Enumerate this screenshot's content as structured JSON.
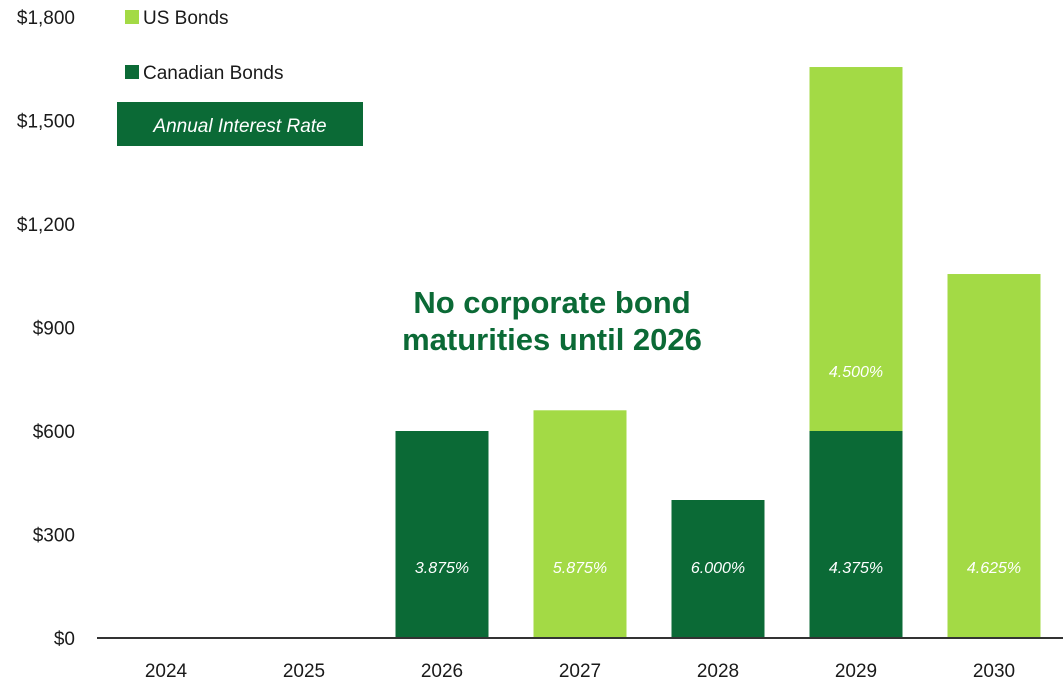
{
  "chart_data": {
    "type": "bar",
    "stacked": true,
    "categories": [
      "2024",
      "2025",
      "2026",
      "2027",
      "2028",
      "2029",
      "2030"
    ],
    "series": [
      {
        "name": "Canadian Bonds",
        "color": "#0b6a36",
        "values": [
          0,
          0,
          600,
          0,
          400,
          600,
          0
        ]
      },
      {
        "name": "US Bonds",
        "color": "#a3da45",
        "values": [
          0,
          0,
          0,
          660,
          0,
          1055,
          1055
        ]
      }
    ],
    "rate_labels": [
      {
        "category": "2026",
        "series": "Canadian Bonds",
        "text": "3.875%"
      },
      {
        "category": "2027",
        "series": "US Bonds",
        "text": "5.875%"
      },
      {
        "category": "2028",
        "series": "Canadian Bonds",
        "text": "6.000%"
      },
      {
        "category": "2029",
        "series": "Canadian Bonds",
        "text": "4.375%"
      },
      {
        "category": "2029",
        "series": "US Bonds",
        "text": "4.500%"
      },
      {
        "category": "2030",
        "series": "US Bonds",
        "text": "4.625%"
      }
    ],
    "ylim": [
      0,
      1800
    ],
    "yticks": [
      0,
      300,
      600,
      900,
      1200,
      1500,
      1800
    ],
    "ytick_labels": [
      "$0",
      "$300",
      "$600",
      "$900",
      "$1,200",
      "$1,500",
      "$1,800"
    ],
    "legend": {
      "position": "top-left",
      "items": [
        "US Bonds",
        "Canadian Bonds"
      ],
      "rate_box_label": "Annual Interest Rate",
      "rate_box_color": "#0b6a36"
    },
    "annotation": [
      "No corporate bond",
      "maturities until 2026"
    ],
    "grid": false
  }
}
